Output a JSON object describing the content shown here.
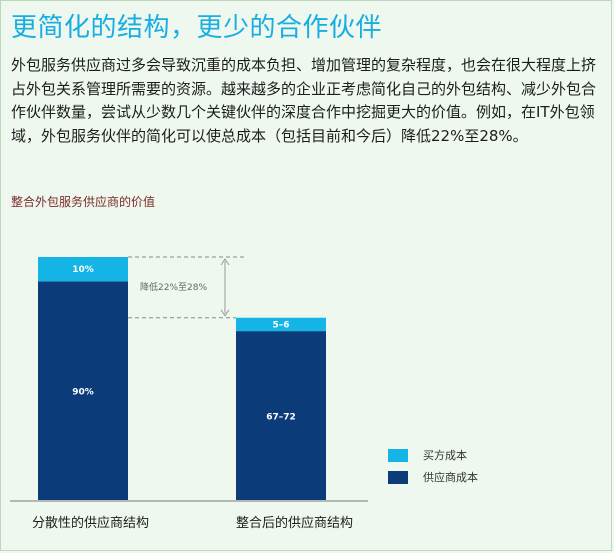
{
  "heading": "更简化的结构，更少的合作伙伴",
  "paragraph": "外包服务供应商过多会导致沉重的成本负担、增加管理的复杂程度，也会在很大程度上挤占外包关系管理所需要的资源。越来越多的企业正考虑简化自己的外包结构、减少外包合作伙伴数量，尝试从少数几个关键伙伴的深度合作中挖掘更大的价值。例如，在IT外包领域，外包服务伙伴的简化可以使总成本（包括目前和今后）降低22%至28%。",
  "chart_data": {
    "type": "bar",
    "stacked": true,
    "title": "整合外包服务供应商的价值",
    "categories": [
      "分散性的供应商结构",
      "整合后的供应商结构"
    ],
    "series": [
      {
        "name": "供应商成本",
        "values": [
          90,
          69.5
        ],
        "labels": [
          "90%",
          "67–72"
        ],
        "color": "#0b3b78"
      },
      {
        "name": "买方成本",
        "values": [
          10,
          5.5
        ],
        "labels": [
          "10%",
          "5–6"
        ],
        "color": "#14b4e6"
      }
    ],
    "ylim": [
      0,
      100
    ],
    "annotation": "降低22%至28%",
    "legend_order": [
      "买方成本",
      "供应商成本"
    ],
    "legend_position": "right"
  }
}
